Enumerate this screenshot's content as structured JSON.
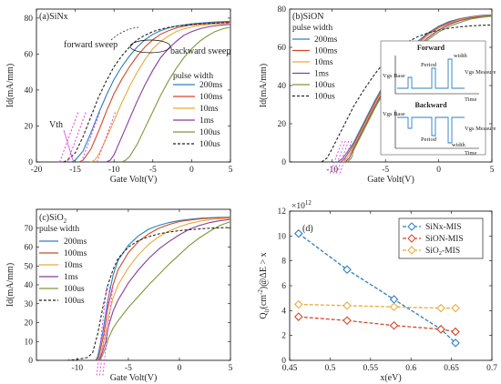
{
  "chart_data": [
    {
      "type": "line",
      "panel_label": "(a)SiNx",
      "xlabel": "Gate Volt(V)",
      "ylabel": "Id(mA/mm)",
      "xlim": [
        -20,
        5
      ],
      "ylim": [
        0,
        85
      ],
      "xticks": [
        -20,
        -15,
        -10,
        -5,
        0,
        5
      ],
      "yticks": [
        0,
        20,
        40,
        60,
        80
      ],
      "legend_title": "pulse width",
      "annotations": [
        "forward sweep",
        "backward sweep",
        "Vth"
      ],
      "series": [
        {
          "name": "200ms",
          "color": "#2a7fc1",
          "dash": false,
          "x": [
            -15.5,
            -15,
            -14,
            -13,
            -12,
            -11,
            -10,
            -9,
            -8,
            -7,
            -6,
            -5,
            -4,
            -3,
            -2,
            -1,
            0,
            1,
            2,
            3,
            4,
            5
          ],
          "y": [
            0,
            1,
            6,
            16,
            27,
            37,
            46,
            53,
            59,
            64,
            68,
            71,
            73,
            74.5,
            75.5,
            76.2,
            76.8,
            77.2,
            77.5,
            77.8,
            78,
            78.2
          ]
        },
        {
          "name": "100ms",
          "color": "#d2472a",
          "dash": false,
          "x": [
            -14.5,
            -14,
            -13,
            -12,
            -11,
            -10,
            -9,
            -8,
            -7,
            -6,
            -5,
            -4,
            -3,
            -2,
            -1,
            0,
            1,
            2,
            3,
            4,
            5
          ],
          "y": [
            0,
            1,
            7,
            17,
            28,
            38,
            46,
            53,
            59,
            64,
            68,
            71,
            73,
            74.5,
            75.5,
            76.2,
            76.6,
            77,
            77.3,
            77.5,
            77.7
          ]
        },
        {
          "name": "10ms",
          "color": "#e8a93a",
          "dash": false,
          "x": [
            -13,
            -12.5,
            -12,
            -11,
            -10,
            -9,
            -8,
            -7,
            -6,
            -5,
            -4,
            -3,
            -2,
            -1,
            0,
            1,
            2,
            3,
            4,
            5
          ],
          "y": [
            0,
            1,
            4,
            13,
            23,
            33,
            42,
            50,
            57,
            63,
            67,
            70,
            72.5,
            74,
            75,
            75.8,
            76.3,
            76.7,
            77,
            77.2
          ]
        },
        {
          "name": "1ms",
          "color": "#8a3b9c",
          "dash": false,
          "x": [
            -11,
            -10.5,
            -10,
            -9,
            -8,
            -7,
            -6,
            -5,
            -4,
            -3,
            -2,
            -1,
            0,
            1,
            2,
            3,
            4,
            5
          ],
          "y": [
            0,
            1,
            4,
            14,
            24,
            34,
            43,
            51,
            58,
            63,
            67,
            70.5,
            72.5,
            74,
            75,
            75.7,
            76.2,
            76.5
          ]
        },
        {
          "name": "100us",
          "color": "#7a9a3a",
          "dash": false,
          "x": [
            -9,
            -8.5,
            -8,
            -7,
            -6,
            -5,
            -4,
            -3,
            -2,
            -1,
            0,
            1,
            2,
            3,
            4,
            5
          ],
          "y": [
            0,
            1,
            3,
            10,
            19,
            28,
            37,
            45,
            52,
            58,
            63,
            67,
            70,
            72.5,
            74,
            75
          ]
        },
        {
          "name": "100us",
          "color": "#222222",
          "dash": true,
          "x": [
            -16.5,
            -16,
            -15,
            -14,
            -13,
            -12,
            -11,
            -10,
            -9,
            -8,
            -7,
            -6,
            -5,
            -4,
            -3,
            -2,
            -1,
            0,
            1,
            2,
            3,
            4,
            5
          ],
          "y": [
            0,
            1,
            5,
            14,
            25,
            36,
            45,
            53,
            59,
            64,
            68,
            70.5,
            72.5,
            73.8,
            74.8,
            75.5,
            76,
            76.4,
            76.7,
            77,
            77.2,
            77.4,
            77.5
          ]
        }
      ]
    },
    {
      "type": "line",
      "panel_label": "(b)SiON",
      "xlabel": "Gate Volt(V)",
      "ylabel": "Id(mA/mm)",
      "xlim": [
        -14,
        5
      ],
      "ylim": [
        0,
        80
      ],
      "xticks": [
        -10,
        -5,
        0,
        5
      ],
      "yticks": [
        0,
        20,
        40,
        60,
        80
      ],
      "legend_title": "pulse width",
      "inset_labels": {
        "forward": "Forward",
        "backward": "Backward",
        "vgs_base": "Vgs Base",
        "period": "Period",
        "width": "width",
        "vgs_measure": "Vgs Measure",
        "time": "Time"
      },
      "series": [
        {
          "name": "200ms",
          "color": "#2a7fc1",
          "dash": false,
          "x": [
            -9.5,
            -9,
            -8,
            -7,
            -6,
            -5,
            -4,
            -3,
            -2,
            -1,
            0,
            1,
            2,
            3,
            4,
            5
          ],
          "y": [
            0,
            2,
            10,
            21,
            32,
            42,
            50,
            57,
            63,
            67.5,
            71,
            73.5,
            75,
            76,
            76.7,
            77
          ]
        },
        {
          "name": "100ms",
          "color": "#d2472a",
          "dash": false,
          "x": [
            -9.2,
            -8.8,
            -8,
            -7,
            -6,
            -5,
            -4,
            -3,
            -2,
            -1,
            0,
            1,
            2,
            3,
            4,
            5
          ],
          "y": [
            0,
            2,
            9,
            20,
            31,
            41,
            49,
            56,
            62,
            67,
            70.5,
            73,
            74.8,
            75.8,
            76.5,
            76.9
          ]
        },
        {
          "name": "10ms",
          "color": "#e8a93a",
          "dash": false,
          "x": [
            -9,
            -8.6,
            -8,
            -7,
            -6,
            -5,
            -4,
            -3,
            -2,
            -1,
            0,
            1,
            2,
            3,
            4,
            5
          ],
          "y": [
            0,
            2,
            8,
            19,
            30,
            40,
            48,
            55,
            61,
            66,
            70,
            72.5,
            74.5,
            75.6,
            76.3,
            76.7
          ]
        },
        {
          "name": "1ms",
          "color": "#8a3b9c",
          "dash": false,
          "x": [
            -8.8,
            -8.4,
            -8,
            -7,
            -6,
            -5,
            -4,
            -3,
            -2,
            -1,
            0,
            1,
            2,
            3,
            4,
            5
          ],
          "y": [
            0,
            2,
            7,
            18,
            29,
            39,
            47,
            54,
            60,
            65,
            69,
            72,
            74,
            75.3,
            76,
            76.5
          ]
        },
        {
          "name": "100us",
          "color": "#7a9a3a",
          "dash": false,
          "x": [
            -8.6,
            -8.2,
            -8,
            -7,
            -6,
            -5,
            -4,
            -3,
            -2,
            -1,
            0,
            1,
            2,
            3,
            4,
            5
          ],
          "y": [
            0,
            2,
            6,
            17,
            28,
            38,
            46,
            53,
            59,
            64,
            68,
            71,
            73,
            74.8,
            75.7,
            76.3
          ]
        },
        {
          "name": "100us",
          "color": "#222222",
          "dash": true,
          "x": [
            -11,
            -10.5,
            -10,
            -9,
            -8,
            -7,
            -6,
            -5,
            -4,
            -3,
            -2,
            -1,
            0,
            1,
            2,
            3,
            4,
            5
          ],
          "y": [
            0,
            2,
            7,
            18,
            29,
            38,
            46,
            53,
            58.5,
            62.5,
            65.5,
            67.5,
            69,
            70,
            70.7,
            71.2,
            71.5,
            71.7
          ]
        }
      ]
    },
    {
      "type": "line",
      "panel_label": "(c)SiO",
      "panel_label_sub": "2",
      "xlabel": "Gate Volt(V)",
      "ylabel": "Id(mA/mm)",
      "xlim": [
        -14,
        5
      ],
      "ylim": [
        0,
        80
      ],
      "xticks": [
        -10,
        -5,
        0,
        5
      ],
      "yticks": [
        0,
        10,
        20,
        30,
        40,
        50,
        60,
        70
      ],
      "legend_title": "pulse width",
      "series": [
        {
          "name": "200ms",
          "color": "#2a7fc1",
          "dash": false,
          "x": [
            -8.2,
            -8,
            -7.5,
            -7,
            -6.5,
            -6,
            -5,
            -4,
            -3,
            -2,
            -1,
            0,
            1,
            2,
            3,
            4,
            5
          ],
          "y": [
            0,
            2,
            15,
            32,
            45,
            53,
            61,
            66,
            69.5,
            71.5,
            73,
            74,
            74.7,
            75.2,
            75.5,
            75.7,
            75.8
          ]
        },
        {
          "name": "100ms",
          "color": "#d2472a",
          "dash": false,
          "x": [
            -8.1,
            -7.9,
            -7.4,
            -7,
            -6.5,
            -6,
            -5,
            -4,
            -3,
            -2,
            -1,
            0,
            1,
            2,
            3,
            4,
            5
          ],
          "y": [
            0,
            2,
            14,
            28,
            40,
            48,
            57,
            63,
            67,
            70,
            72,
            73.5,
            74.3,
            74.9,
            75.3,
            75.5,
            75.7
          ]
        },
        {
          "name": "10ms",
          "color": "#e8a93a",
          "dash": false,
          "x": [
            -8,
            -7.8,
            -7.3,
            -7,
            -6.5,
            -6,
            -5,
            -4,
            -3,
            -2,
            -1,
            0,
            1,
            2,
            3,
            4,
            5
          ],
          "y": [
            0,
            2,
            12,
            22,
            33,
            40,
            49,
            56,
            61.5,
            65.5,
            68.5,
            70.8,
            72.5,
            73.7,
            74.5,
            75,
            75.3
          ]
        },
        {
          "name": "1ms",
          "color": "#8a3b9c",
          "dash": false,
          "x": [
            -7.9,
            -7.7,
            -7.2,
            -7,
            -6.5,
            -6,
            -5,
            -4,
            -3,
            -2,
            -1,
            0,
            1,
            2,
            3,
            4,
            5
          ],
          "y": [
            0,
            2,
            10,
            17,
            26,
            32,
            41,
            48,
            54,
            59,
            63,
            66.5,
            69.5,
            71.5,
            73,
            74,
            74.7
          ]
        },
        {
          "name": "100us",
          "color": "#7a9a3a",
          "dash": false,
          "x": [
            -7.8,
            -7.6,
            -7.2,
            -7,
            -6.5,
            -6,
            -5,
            -4,
            -3,
            -2,
            -1,
            0,
            1,
            2,
            3,
            4,
            5
          ],
          "y": [
            0,
            2,
            7,
            11,
            17,
            21,
            28,
            34,
            40,
            45.5,
            51,
            56,
            61,
            65,
            68.5,
            71.5,
            73.5
          ]
        },
        {
          "name": "100us",
          "color": "#222222",
          "dash": true,
          "x": [
            -11,
            -10,
            -9,
            -8.5,
            -8,
            -7.5,
            -7,
            -6.5,
            -6,
            -5,
            -4,
            -3,
            -2,
            -1,
            0,
            1,
            2,
            3,
            4,
            5
          ],
          "y": [
            0,
            0.5,
            1.5,
            4,
            14,
            28,
            40,
            48,
            54,
            60,
            63.5,
            65.5,
            67,
            68,
            68.7,
            69.2,
            69.6,
            70,
            70.2,
            70.4
          ]
        }
      ]
    },
    {
      "type": "line",
      "panel_label": "(d)",
      "xlabel": "x(eV)",
      "ylabel_parts": [
        "Q",
        "it",
        "(cm",
        "-2",
        ")@ΔE > x"
      ],
      "exponent_label": "×10",
      "exponent_power": "12",
      "xlim": [
        0.45,
        0.7
      ],
      "ylim": [
        0,
        12
      ],
      "xticks": [
        0.45,
        0.5,
        0.55,
        0.6,
        0.65,
        0.7
      ],
      "xtick_labels": [
        "0.45",
        "0.5",
        "0.55",
        "0.6",
        "0.65",
        "0.7"
      ],
      "yticks": [
        0,
        2,
        4,
        6,
        8,
        10,
        12
      ],
      "legend_position": "top-right",
      "series": [
        {
          "name": "SiNx-MIS",
          "color": "#2a7fc1",
          "x": [
            0.461,
            0.521,
            0.579,
            0.637,
            0.655
          ],
          "y": [
            10.2,
            7.3,
            4.9,
            2.5,
            1.4
          ]
        },
        {
          "name": "SiON-MIS",
          "color": "#d2472a",
          "x": [
            0.461,
            0.521,
            0.579,
            0.637,
            0.655
          ],
          "y": [
            3.5,
            3.2,
            2.8,
            2.5,
            2.3
          ]
        },
        {
          "name": "SiO2-MIS",
          "name_parts": [
            "SiO",
            "2",
            "-MIS"
          ],
          "color": "#e8a93a",
          "x": [
            0.461,
            0.521,
            0.579,
            0.637,
            0.655
          ],
          "y": [
            4.5,
            4.4,
            4.3,
            4.2,
            4.2
          ]
        }
      ]
    }
  ]
}
